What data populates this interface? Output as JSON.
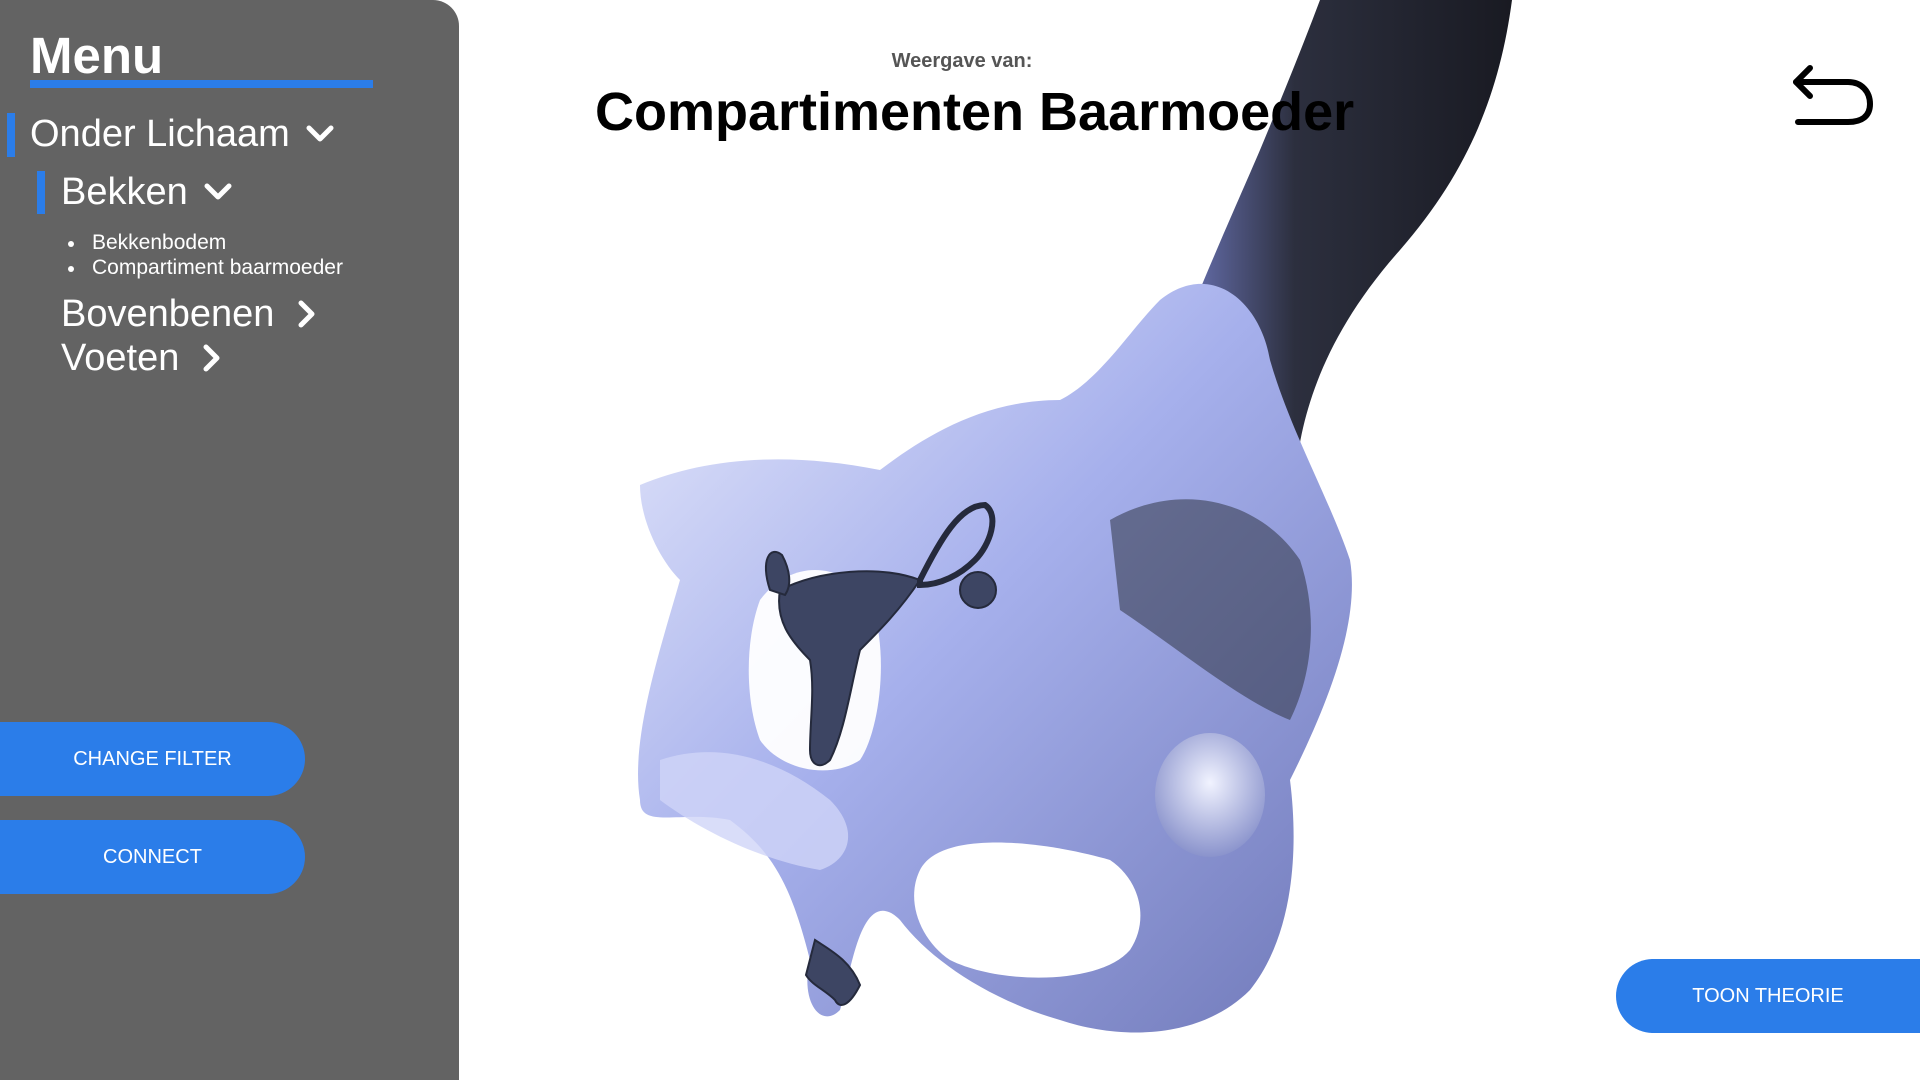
{
  "sidebar": {
    "menu_title": "Menu",
    "nav": [
      {
        "label": "Onder Lichaam",
        "icon": "chevron-down-icon"
      },
      {
        "label": "Bekken",
        "icon": "chevron-down-icon"
      }
    ],
    "subitems": [
      "Bekkenbodem",
      "Compartiment baarmoeder"
    ],
    "collapsed": [
      {
        "label": "Bovenbenen",
        "icon": "chevron-right-icon"
      },
      {
        "label": "Voeten",
        "icon": "chevron-right-icon"
      }
    ],
    "change_filter_label": "CHANGE FILTER",
    "connect_label": "CONNECT"
  },
  "main": {
    "subtitle": "Weergave van:",
    "title": "Compartimenten Baarmoeder",
    "back_icon": "back-arrow-icon",
    "theory_label": "TOON THEORIE"
  },
  "colors": {
    "accent": "#2b7de9",
    "sidebar_bg": "#636363",
    "bone": "#aab4ee",
    "uterus": "#3c4462"
  }
}
